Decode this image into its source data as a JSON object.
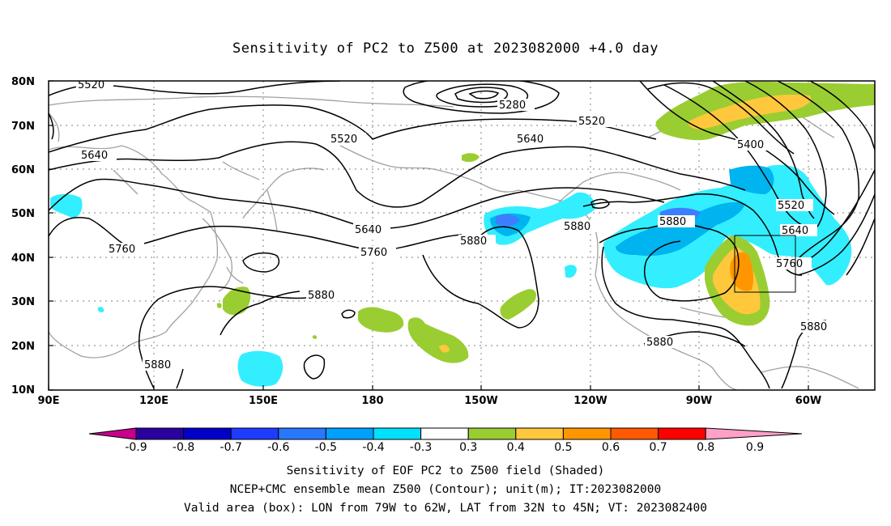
{
  "title": "Sensitivity of PC2 to Z500 at 2023082000 +4.0 day",
  "map": {
    "lat_labels": [
      "80N",
      "70N",
      "60N",
      "50N",
      "40N",
      "30N",
      "20N",
      "10N"
    ],
    "lon_labels": [
      "90E",
      "120E",
      "150E",
      "180",
      "150W",
      "120W",
      "90W",
      "60W"
    ],
    "contour_labels": [
      "5520",
      "5280",
      "5520",
      "5520",
      "5640",
      "5640",
      "5400",
      "5640",
      "5760",
      "5880",
      "5760",
      "5520",
      "5880",
      "5640",
      "5760",
      "5880",
      "5880",
      "5880",
      "5880",
      "5880"
    ],
    "valid_box": {
      "lon_from": "79W",
      "lon_to": "62W",
      "lat_from": "32N",
      "lat_to": "45N"
    }
  },
  "colorbar": {
    "labels": [
      "-0.9",
      "-0.8",
      "-0.7",
      "-0.6",
      "-0.5",
      "-0.4",
      "-0.3",
      "0.3",
      "0.4",
      "0.5",
      "0.6",
      "0.7",
      "0.8",
      "0.9"
    ],
    "colors": [
      "#2a00a0",
      "#0000c8",
      "#1e3cff",
      "#2878ff",
      "#00a0ff",
      "#00e0ff",
      "#ffffff",
      "#9acd32",
      "#ffc83c",
      "#ff9600",
      "#ff5a00",
      "#ff0000"
    ],
    "end_low": "#c8008c",
    "end_high": "#ffa0c8"
  },
  "shading_colors": {
    "cyan": "#33eeff",
    "sky": "#00b4f0",
    "blue": "#3d7dff",
    "green": "#9acd32",
    "yellow": "#ffc83c",
    "orange": "#ff9600"
  },
  "captions": {
    "line1": "Sensitivity of EOF PC2 to Z500 field (Shaded)",
    "line2": "NCEP+CMC ensemble mean Z500 (Contour); unit(m); IT:2023082000",
    "line3": "Valid area (box): LON from 79W to 62W, LAT from 32N to 45N; VT: 2023082400"
  }
}
